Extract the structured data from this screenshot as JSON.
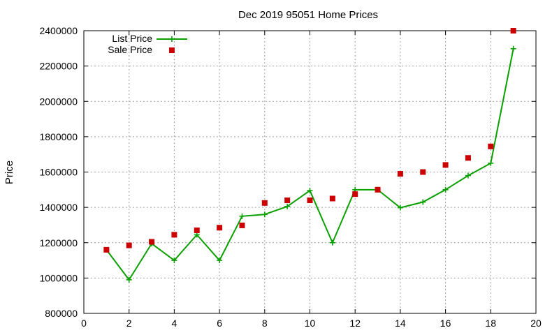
{
  "chart_data": {
    "type": "line",
    "title": "Dec 2019 95051 Home Prices",
    "xlabel": "",
    "ylabel": "Price",
    "xlim": [
      0,
      20
    ],
    "ylim": [
      800000,
      2400000
    ],
    "x_ticks": [
      0,
      2,
      4,
      6,
      8,
      10,
      12,
      14,
      16,
      18,
      20
    ],
    "y_ticks": [
      800000,
      1000000,
      1200000,
      1400000,
      1600000,
      1800000,
      2000000,
      2200000,
      2400000
    ],
    "grid": true,
    "legend_position": "top-left",
    "series": [
      {
        "name": "List Price",
        "style": "line+cross",
        "color": "#0aa000",
        "x": [
          1,
          2,
          3,
          4,
          5,
          6,
          7,
          8,
          9,
          10,
          11,
          12,
          13,
          14,
          15,
          16,
          17,
          18,
          19
        ],
        "values": [
          1160000,
          990000,
          1195000,
          1100000,
          1245000,
          1100000,
          1350000,
          1360000,
          1405000,
          1495000,
          1200000,
          1500000,
          1500000,
          1398000,
          1430000,
          1500000,
          1580000,
          1650000,
          2298000
        ]
      },
      {
        "name": "Sale Price",
        "style": "square",
        "color": "#cc0000",
        "x": [
          1,
          2,
          3,
          4,
          5,
          6,
          7,
          8,
          9,
          10,
          11,
          12,
          13,
          14,
          15,
          16,
          17,
          18,
          19
        ],
        "values": [
          1160000,
          1185000,
          1205000,
          1245000,
          1270000,
          1285000,
          1298000,
          1425000,
          1440000,
          1440000,
          1450000,
          1475000,
          1500000,
          1590000,
          1600000,
          1640000,
          1680000,
          1745000,
          2400000
        ]
      }
    ]
  }
}
